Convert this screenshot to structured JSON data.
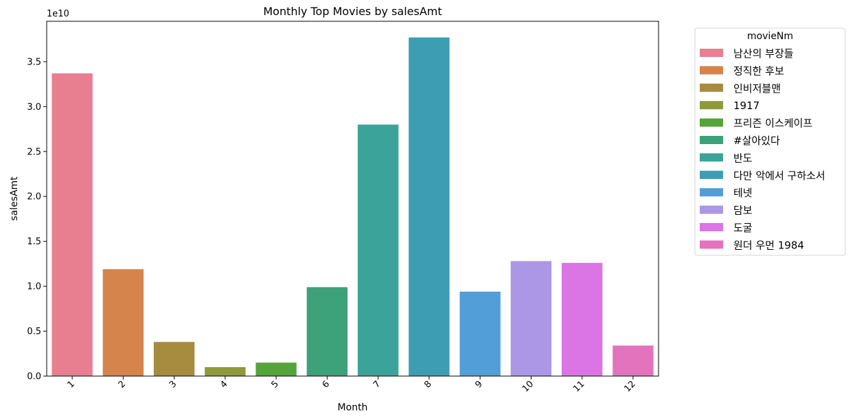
{
  "chart_data": {
    "type": "bar",
    "title": "Monthly Top Movies by salesAmt",
    "xlabel": "Month",
    "ylabel": "salesAmt",
    "y_offset_label": "1e10",
    "ylim": [
      0,
      3.95
    ],
    "yticks": [
      0.0,
      0.5,
      1.0,
      1.5,
      2.0,
      2.5,
      3.0,
      3.5
    ],
    "ytick_labels": [
      "0.0",
      "0.5",
      "1.0",
      "1.5",
      "2.0",
      "2.5",
      "3.0",
      "3.5"
    ],
    "categories": [
      "1",
      "2",
      "3",
      "4",
      "5",
      "6",
      "7",
      "8",
      "9",
      "10",
      "11",
      "12"
    ],
    "values": [
      3.37,
      1.19,
      0.38,
      0.1,
      0.15,
      0.99,
      2.8,
      3.77,
      0.94,
      1.28,
      1.26,
      0.34
    ],
    "series_names": [
      "남산의 부장들",
      "정직한 후보",
      "인비저블맨",
      "1917",
      "프리즌 이스케이프",
      "#살아있다",
      "반도",
      "다만 악에서 구하소서",
      "테넷",
      "담보",
      "도굴",
      "원더 우먼 1984"
    ],
    "colors": [
      "#e77f90",
      "#d5844b",
      "#a78b3f",
      "#8e9a3b",
      "#55a43b",
      "#3da179",
      "#3ca39a",
      "#3d9eb3",
      "#529ed9",
      "#ab97e5",
      "#db74e5",
      "#e373bd"
    ],
    "legend_title": "movieNm",
    "legend_position": "outside-upper-right",
    "grid": false
  }
}
